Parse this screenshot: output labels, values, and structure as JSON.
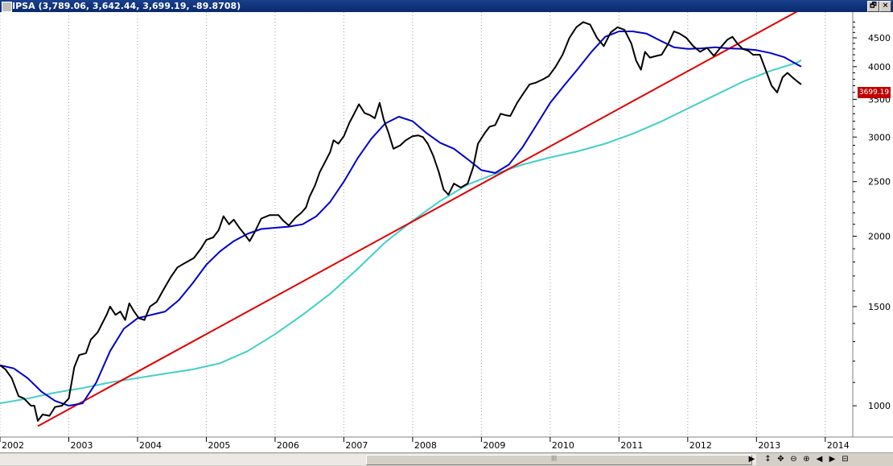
{
  "window": {
    "symbol": "IPSA",
    "ohlc_label": "(3,789.06, 3,642.44, 3,699.19, -89.8708)",
    "restore_label": "🗗",
    "close_label": "×"
  },
  "price_box": {
    "value": "3699.19",
    "color": "#c00000"
  },
  "scrollbar": {
    "left_arrow": "◀",
    "right_arrow": "▶",
    "buttons": [
      "↕",
      "✥",
      "⊖",
      "⊕",
      "◀",
      "▶",
      "⊟"
    ]
  },
  "colors": {
    "price": "#000000",
    "ma_short": "#0000cc",
    "ma_long": "#40d0c8",
    "trendline": "#e00000",
    "grid": "#a0a0a0"
  },
  "chart_data": {
    "type": "line",
    "scale": "log",
    "xlim": [
      2002.0,
      2014.4
    ],
    "ylim": [
      880,
      5000
    ],
    "x_ticks": [
      "2002",
      "2003",
      "2004",
      "2005",
      "2006",
      "2007",
      "2008",
      "2009",
      "2010",
      "2011",
      "2012",
      "2013",
      "2014"
    ],
    "y_ticks": [
      1000,
      1500,
      2000,
      2500,
      3000,
      3500,
      4000,
      4500
    ],
    "grid": "vertical dotted",
    "series": [
      {
        "key": "price",
        "points": [
          [
            2002.0,
            1180
          ],
          [
            2002.08,
            1160
          ],
          [
            2002.17,
            1120
          ],
          [
            2002.27,
            1040
          ],
          [
            2002.35,
            1030
          ],
          [
            2002.45,
            1000
          ],
          [
            2002.5,
            1000
          ],
          [
            2002.55,
            940
          ],
          [
            2002.62,
            965
          ],
          [
            2002.72,
            960
          ],
          [
            2002.8,
            995
          ],
          [
            2002.9,
            1000
          ],
          [
            2003.0,
            1030
          ],
          [
            2003.08,
            1170
          ],
          [
            2003.15,
            1230
          ],
          [
            2003.25,
            1240
          ],
          [
            2003.32,
            1310
          ],
          [
            2003.42,
            1350
          ],
          [
            2003.55,
            1450
          ],
          [
            2003.6,
            1500
          ],
          [
            2003.68,
            1450
          ],
          [
            2003.75,
            1470
          ],
          [
            2003.82,
            1420
          ],
          [
            2003.88,
            1520
          ],
          [
            2003.95,
            1470
          ],
          [
            2004.02,
            1430
          ],
          [
            2004.1,
            1420
          ],
          [
            2004.18,
            1500
          ],
          [
            2004.28,
            1530
          ],
          [
            2004.38,
            1610
          ],
          [
            2004.48,
            1690
          ],
          [
            2004.58,
            1760
          ],
          [
            2004.68,
            1790
          ],
          [
            2004.82,
            1830
          ],
          [
            2004.92,
            1900
          ],
          [
            2005.0,
            1970
          ],
          [
            2005.1,
            1990
          ],
          [
            2005.18,
            2050
          ],
          [
            2005.25,
            2170
          ],
          [
            2005.33,
            2100
          ],
          [
            2005.4,
            2140
          ],
          [
            2005.48,
            2070
          ],
          [
            2005.55,
            2020
          ],
          [
            2005.63,
            1960
          ],
          [
            2005.7,
            2030
          ],
          [
            2005.8,
            2150
          ],
          [
            2005.92,
            2180
          ],
          [
            2006.05,
            2180
          ],
          [
            2006.12,
            2130
          ],
          [
            2006.2,
            2090
          ],
          [
            2006.3,
            2160
          ],
          [
            2006.38,
            2200
          ],
          [
            2006.45,
            2250
          ],
          [
            2006.5,
            2350
          ],
          [
            2006.58,
            2460
          ],
          [
            2006.65,
            2600
          ],
          [
            2006.72,
            2700
          ],
          [
            2006.8,
            2820
          ],
          [
            2006.85,
            2960
          ],
          [
            2006.92,
            2920
          ],
          [
            2007.0,
            3010
          ],
          [
            2007.08,
            3180
          ],
          [
            2007.15,
            3300
          ],
          [
            2007.22,
            3430
          ],
          [
            2007.3,
            3310
          ],
          [
            2007.38,
            3280
          ],
          [
            2007.45,
            3240
          ],
          [
            2007.52,
            3450
          ],
          [
            2007.58,
            3220
          ],
          [
            2007.65,
            3050
          ],
          [
            2007.72,
            2860
          ],
          [
            2007.82,
            2900
          ],
          [
            2007.9,
            2960
          ],
          [
            2008.0,
            3010
          ],
          [
            2008.08,
            3020
          ],
          [
            2008.15,
            3000
          ],
          [
            2008.22,
            2920
          ],
          [
            2008.3,
            2780
          ],
          [
            2008.38,
            2600
          ],
          [
            2008.45,
            2420
          ],
          [
            2008.52,
            2370
          ],
          [
            2008.6,
            2480
          ],
          [
            2008.7,
            2440
          ],
          [
            2008.8,
            2480
          ],
          [
            2008.88,
            2650
          ],
          [
            2008.95,
            2920
          ],
          [
            2009.05,
            3050
          ],
          [
            2009.12,
            3130
          ],
          [
            2009.2,
            3150
          ],
          [
            2009.28,
            3300
          ],
          [
            2009.35,
            3280
          ],
          [
            2009.42,
            3270
          ],
          [
            2009.52,
            3450
          ],
          [
            2009.62,
            3600
          ],
          [
            2009.7,
            3720
          ],
          [
            2009.8,
            3750
          ],
          [
            2009.9,
            3800
          ],
          [
            2009.98,
            3850
          ],
          [
            2010.08,
            4000
          ],
          [
            2010.18,
            4200
          ],
          [
            2010.28,
            4500
          ],
          [
            2010.38,
            4700
          ],
          [
            2010.48,
            4800
          ],
          [
            2010.58,
            4750
          ],
          [
            2010.68,
            4500
          ],
          [
            2010.78,
            4350
          ],
          [
            2010.88,
            4600
          ],
          [
            2010.98,
            4700
          ],
          [
            2011.08,
            4650
          ],
          [
            2011.18,
            4400
          ],
          [
            2011.25,
            4100
          ],
          [
            2011.32,
            3950
          ],
          [
            2011.38,
            4250
          ],
          [
            2011.45,
            4150
          ],
          [
            2011.55,
            4180
          ],
          [
            2011.62,
            4200
          ],
          [
            2011.72,
            4400
          ],
          [
            2011.8,
            4620
          ],
          [
            2011.88,
            4580
          ],
          [
            2011.98,
            4500
          ],
          [
            2012.08,
            4350
          ],
          [
            2012.18,
            4250
          ],
          [
            2012.28,
            4320
          ],
          [
            2012.38,
            4180
          ],
          [
            2012.48,
            4330
          ],
          [
            2012.58,
            4470
          ],
          [
            2012.65,
            4520
          ],
          [
            2012.72,
            4400
          ],
          [
            2012.8,
            4300
          ],
          [
            2012.88,
            4270
          ],
          [
            2012.95,
            4200
          ],
          [
            2013.05,
            4200
          ],
          [
            2013.15,
            3900
          ],
          [
            2013.22,
            3700
          ],
          [
            2013.3,
            3600
          ],
          [
            2013.38,
            3830
          ],
          [
            2013.45,
            3900
          ],
          [
            2013.52,
            3830
          ],
          [
            2013.6,
            3760
          ],
          [
            2013.65,
            3720
          ]
        ]
      },
      {
        "key": "ma_short",
        "points": [
          [
            2002.0,
            1180
          ],
          [
            2002.2,
            1165
          ],
          [
            2002.4,
            1120
          ],
          [
            2002.6,
            1060
          ],
          [
            2002.8,
            1020
          ],
          [
            2003.0,
            1000
          ],
          [
            2003.2,
            1010
          ],
          [
            2003.4,
            1100
          ],
          [
            2003.6,
            1250
          ],
          [
            2003.8,
            1370
          ],
          [
            2004.0,
            1430
          ],
          [
            2004.2,
            1450
          ],
          [
            2004.4,
            1470
          ],
          [
            2004.6,
            1540
          ],
          [
            2004.8,
            1650
          ],
          [
            2005.0,
            1780
          ],
          [
            2005.2,
            1880
          ],
          [
            2005.4,
            1960
          ],
          [
            2005.6,
            2020
          ],
          [
            2005.8,
            2060
          ],
          [
            2006.0,
            2070
          ],
          [
            2006.2,
            2080
          ],
          [
            2006.4,
            2100
          ],
          [
            2006.6,
            2170
          ],
          [
            2006.8,
            2300
          ],
          [
            2007.0,
            2500
          ],
          [
            2007.2,
            2750
          ],
          [
            2007.4,
            2980
          ],
          [
            2007.6,
            3170
          ],
          [
            2007.8,
            3260
          ],
          [
            2008.0,
            3200
          ],
          [
            2008.2,
            3050
          ],
          [
            2008.4,
            2930
          ],
          [
            2008.6,
            2860
          ],
          [
            2008.8,
            2740
          ],
          [
            2009.0,
            2620
          ],
          [
            2009.2,
            2590
          ],
          [
            2009.4,
            2680
          ],
          [
            2009.6,
            2880
          ],
          [
            2009.8,
            3150
          ],
          [
            2010.0,
            3450
          ],
          [
            2010.2,
            3700
          ],
          [
            2010.4,
            3960
          ],
          [
            2010.6,
            4250
          ],
          [
            2010.8,
            4520
          ],
          [
            2011.0,
            4620
          ],
          [
            2011.2,
            4620
          ],
          [
            2011.4,
            4580
          ],
          [
            2011.6,
            4450
          ],
          [
            2011.8,
            4330
          ],
          [
            2012.0,
            4300
          ],
          [
            2012.2,
            4310
          ],
          [
            2012.4,
            4330
          ],
          [
            2012.6,
            4310
          ],
          [
            2012.8,
            4300
          ],
          [
            2013.0,
            4280
          ],
          [
            2013.2,
            4230
          ],
          [
            2013.4,
            4160
          ],
          [
            2013.6,
            4030
          ],
          [
            2013.65,
            4000
          ]
        ]
      },
      {
        "key": "ma_long",
        "points": [
          [
            2002.0,
            1010
          ],
          [
            2002.4,
            1030
          ],
          [
            2002.8,
            1055
          ],
          [
            2003.2,
            1075
          ],
          [
            2003.6,
            1100
          ],
          [
            2004.0,
            1120
          ],
          [
            2004.4,
            1140
          ],
          [
            2004.8,
            1160
          ],
          [
            2005.2,
            1190
          ],
          [
            2005.6,
            1250
          ],
          [
            2006.0,
            1340
          ],
          [
            2006.4,
            1450
          ],
          [
            2006.8,
            1580
          ],
          [
            2007.2,
            1750
          ],
          [
            2007.6,
            1950
          ],
          [
            2008.0,
            2130
          ],
          [
            2008.4,
            2310
          ],
          [
            2008.8,
            2470
          ],
          [
            2009.2,
            2580
          ],
          [
            2009.6,
            2680
          ],
          [
            2010.0,
            2760
          ],
          [
            2010.4,
            2830
          ],
          [
            2010.8,
            2920
          ],
          [
            2011.2,
            3040
          ],
          [
            2011.6,
            3190
          ],
          [
            2012.0,
            3370
          ],
          [
            2012.4,
            3560
          ],
          [
            2012.8,
            3760
          ],
          [
            2013.2,
            3930
          ],
          [
            2013.6,
            4070
          ],
          [
            2013.65,
            4110
          ]
        ]
      },
      {
        "key": "trendline",
        "points": [
          [
            2002.55,
            920
          ],
          [
            2013.6,
            5020
          ]
        ]
      }
    ]
  }
}
